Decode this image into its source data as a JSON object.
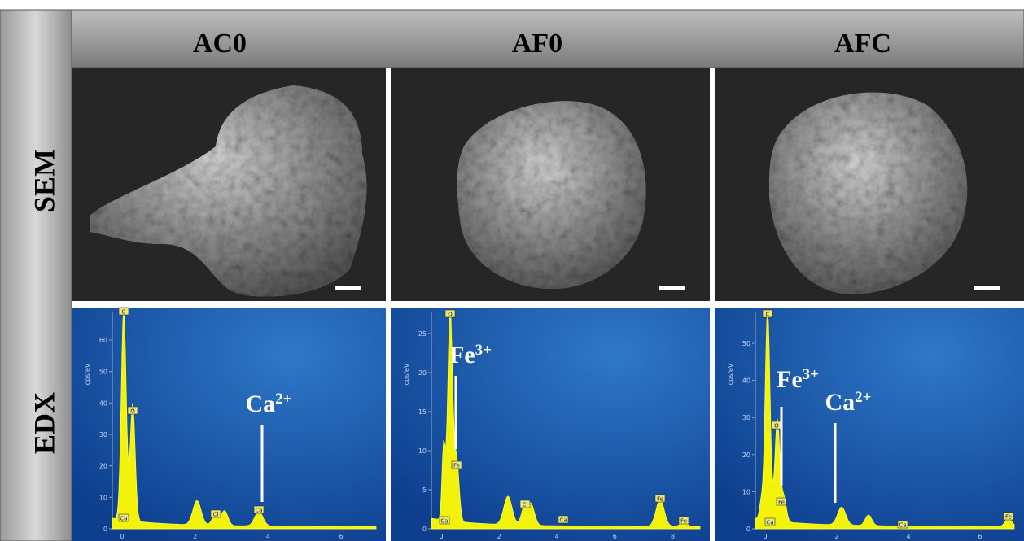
{
  "row_labels": [
    "SEM",
    "EDX"
  ],
  "panels": [
    {
      "title": "AC0",
      "edx": {
        "y_axis_label": "cps/eV",
        "yticks": [
          "0",
          "10",
          "20",
          "30",
          "40",
          "50",
          "60"
        ],
        "xticks": [
          "0",
          "2",
          "4",
          "6"
        ],
        "peak_labels": [
          "C",
          "O",
          "Ca",
          "Cl",
          "Ca"
        ],
        "annotations": [
          {
            "ion": "Ca",
            "charge": "2+"
          }
        ]
      }
    },
    {
      "title": "AF0",
      "edx": {
        "y_axis_label": "cps/eV",
        "yticks": [
          "0",
          "5",
          "10",
          "15",
          "20",
          "25"
        ],
        "xticks": [
          "0",
          "2",
          "4",
          "6",
          "8"
        ],
        "peak_labels": [
          "O",
          "Fe",
          "Ca",
          "Cl",
          "Ca",
          "Fe",
          "Fe"
        ],
        "annotations": [
          {
            "ion": "Fe",
            "charge": "3+"
          }
        ]
      }
    },
    {
      "title": "AFC",
      "edx": {
        "y_axis_label": "cps/eV",
        "yticks": [
          "0",
          "10",
          "20",
          "30",
          "40",
          "50"
        ],
        "xticks": [
          "0",
          "2",
          "4",
          "6"
        ],
        "peak_labels": [
          "C",
          "O",
          "Fe",
          "Ca",
          "Ca",
          "Fe"
        ],
        "annotations": [
          {
            "ion": "Fe",
            "charge": "3+"
          },
          {
            "ion": "Ca",
            "charge": "2+"
          }
        ]
      }
    }
  ]
}
